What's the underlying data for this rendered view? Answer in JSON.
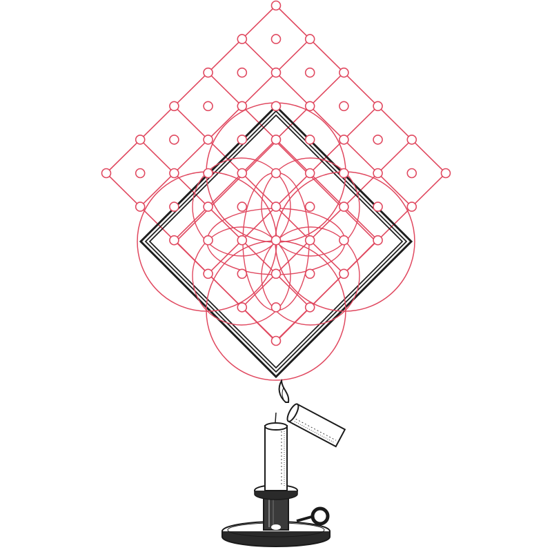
{
  "colors": {
    "lattice": "#e0485f",
    "frame": "#1e1e1e",
    "engraving": "#1a1a1a",
    "background": "#ffffff"
  },
  "artwork": {
    "lattice": "diamond-lattice-with-circle-nodes",
    "rosette": "interlaced-arc-rosette",
    "frame": "triple-line-diamond-frame",
    "illustration": "candlestick-with-lit-candle-and-falling-candle"
  }
}
